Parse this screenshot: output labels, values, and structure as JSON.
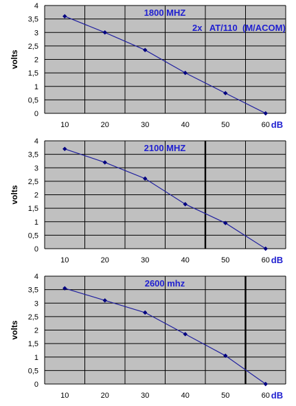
{
  "chart_data": [
    {
      "type": "line",
      "title": "1800 MHZ",
      "annotation": "2x   AT/110  (M/ACOM)",
      "ylabel": "volts",
      "xlabel": "dB",
      "x": [
        10,
        20,
        30,
        40,
        50,
        60
      ],
      "y": [
        3.6,
        3.0,
        2.35,
        1.5,
        0.75,
        0.0
      ],
      "xlim": [
        5,
        65
      ],
      "ylim": [
        0,
        4
      ],
      "xticks": [
        "10",
        "20",
        "30",
        "40",
        "50",
        "60"
      ],
      "yticks": [
        "0",
        "0,5",
        "1",
        "1,5",
        "2",
        "2,5",
        "3",
        "3,5",
        "4"
      ],
      "vertical_marker": null,
      "grid": true
    },
    {
      "type": "line",
      "title": "2100 MHZ",
      "ylabel": "volts",
      "xlabel": "dB",
      "x": [
        10,
        20,
        30,
        40,
        50,
        60
      ],
      "y": [
        3.7,
        3.2,
        2.6,
        1.65,
        0.95,
        0.0
      ],
      "xlim": [
        5,
        65
      ],
      "ylim": [
        0,
        4
      ],
      "xticks": [
        "10",
        "20",
        "30",
        "40",
        "50",
        "60"
      ],
      "yticks": [
        "0",
        "0,5",
        "1",
        "1,5",
        "2",
        "2,5",
        "3",
        "3,5",
        "4"
      ],
      "vertical_marker": 45,
      "grid": true
    },
    {
      "type": "line",
      "title": "2600 mhz",
      "ylabel": "volts",
      "xlabel": "dB",
      "x": [
        10,
        20,
        30,
        40,
        50,
        60
      ],
      "y": [
        3.55,
        3.1,
        2.65,
        1.85,
        1.05,
        0.0
      ],
      "xlim": [
        5,
        65
      ],
      "ylim": [
        0,
        4
      ],
      "xticks": [
        "10",
        "20",
        "30",
        "40",
        "50",
        "60"
      ],
      "yticks": [
        "0",
        "0,5",
        "1",
        "1,5",
        "2",
        "2,5",
        "3",
        "3,5",
        "4"
      ],
      "vertical_marker": 55,
      "grid": true
    }
  ]
}
